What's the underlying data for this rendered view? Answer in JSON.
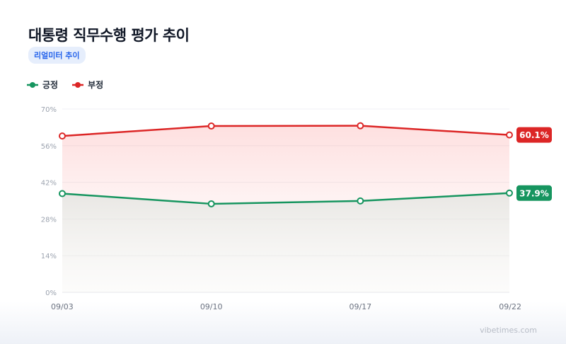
{
  "header": {
    "title": "대통령 직무수행 평가 추이",
    "badge": "리얼미터 추이"
  },
  "footer": {
    "watermark": "vibetimes.com"
  },
  "colors": {
    "positive": "#16955f",
    "negative": "#dc2626"
  },
  "chart_data": {
    "type": "line",
    "categories": [
      "09/03",
      "09/10",
      "09/17",
      "09/22"
    ],
    "series": [
      {
        "name": "긍정",
        "values": [
          37.7,
          33.8,
          34.9,
          37.9
        ],
        "end_label": "37.9%",
        "color": "#16955f"
      },
      {
        "name": "부정",
        "values": [
          59.7,
          63.5,
          63.6,
          60.1
        ],
        "end_label": "60.1%",
        "color": "#dc2626"
      }
    ],
    "ylim": [
      0,
      70
    ],
    "yticks": [
      0,
      14,
      28,
      42,
      56,
      70
    ],
    "ytick_labels": [
      "0%",
      "14%",
      "28%",
      "42%",
      "56%",
      "70%"
    ],
    "grid": true,
    "legend_position": "top-left"
  }
}
